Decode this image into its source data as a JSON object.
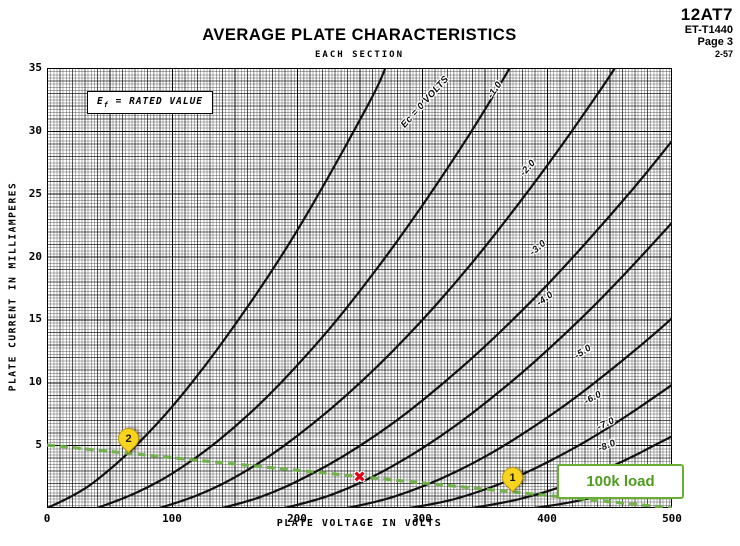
{
  "header": {
    "tube_type": "12AT7",
    "doc_number": "ET-T1440",
    "page": "Page 3",
    "date_code": "2-57"
  },
  "ef_note": {
    "prefix": "E",
    "sub": "f",
    "rest": " = RATED VALUE"
  },
  "chart_data": {
    "type": "line",
    "title": "AVERAGE PLATE CHARACTERISTICS",
    "subtitle": "EACH SECTION",
    "xlabel": "PLATE VOLTAGE IN VOLTS",
    "ylabel": "PLATE CURRENT IN MILLIAMPERES",
    "xlim": [
      0,
      500
    ],
    "ylim": [
      0,
      35
    ],
    "x_ticks": [
      0,
      100,
      200,
      300,
      400,
      500
    ],
    "y_ticks": [
      5,
      10,
      15,
      20,
      25,
      30,
      35
    ],
    "grid": "fine graph paper, on",
    "legend_position": "labels on curves",
    "series": [
      {
        "name": "Ec = 0 VOLTS",
        "grid_voltage": 0,
        "points": [
          [
            0,
            0
          ],
          [
            25,
            1.1
          ],
          [
            50,
            3.0
          ],
          [
            75,
            5.3
          ],
          [
            100,
            8.0
          ],
          [
            125,
            11.1
          ],
          [
            150,
            14.5
          ],
          [
            175,
            18.1
          ],
          [
            200,
            22.0
          ],
          [
            225,
            26.3
          ],
          [
            250,
            30.8
          ],
          [
            265,
            33.6
          ],
          [
            272,
            35.3
          ]
        ]
      },
      {
        "name": "-1.0",
        "grid_voltage": -1,
        "points": [
          [
            40,
            0
          ],
          [
            60,
            0.7
          ],
          [
            80,
            1.6
          ],
          [
            100,
            2.7
          ],
          [
            125,
            4.4
          ],
          [
            150,
            6.4
          ],
          [
            175,
            8.7
          ],
          [
            200,
            11.3
          ],
          [
            225,
            14.1
          ],
          [
            250,
            17.2
          ],
          [
            275,
            20.5
          ],
          [
            300,
            24.0
          ],
          [
            325,
            27.7
          ],
          [
            350,
            31.6
          ],
          [
            372,
            35.3
          ]
        ]
      },
      {
        "name": "-2.0",
        "grid_voltage": -2,
        "points": [
          [
            90,
            0
          ],
          [
            110,
            0.6
          ],
          [
            130,
            1.4
          ],
          [
            150,
            2.4
          ],
          [
            175,
            3.9
          ],
          [
            200,
            5.7
          ],
          [
            225,
            7.7
          ],
          [
            250,
            9.9
          ],
          [
            275,
            12.3
          ],
          [
            300,
            14.9
          ],
          [
            325,
            17.7
          ],
          [
            350,
            20.7
          ],
          [
            375,
            23.9
          ],
          [
            400,
            27.2
          ],
          [
            425,
            30.7
          ],
          [
            450,
            34.3
          ],
          [
            456,
            35.3
          ]
        ]
      },
      {
        "name": "-3.0",
        "grid_voltage": -3,
        "points": [
          [
            140,
            0
          ],
          [
            160,
            0.5
          ],
          [
            180,
            1.2
          ],
          [
            200,
            2.1
          ],
          [
            225,
            3.4
          ],
          [
            250,
            4.9
          ],
          [
            275,
            6.6
          ],
          [
            300,
            8.5
          ],
          [
            325,
            10.6
          ],
          [
            350,
            12.8
          ],
          [
            375,
            15.2
          ],
          [
            400,
            17.7
          ],
          [
            425,
            20.4
          ],
          [
            450,
            23.2
          ],
          [
            475,
            26.1
          ],
          [
            500,
            29.2
          ]
        ]
      },
      {
        "name": "-4.0",
        "grid_voltage": -4,
        "points": [
          [
            190,
            0
          ],
          [
            215,
            0.6
          ],
          [
            240,
            1.5
          ],
          [
            265,
            2.7
          ],
          [
            290,
            4.1
          ],
          [
            315,
            5.7
          ],
          [
            340,
            7.5
          ],
          [
            365,
            9.5
          ],
          [
            390,
            11.6
          ],
          [
            415,
            13.9
          ],
          [
            440,
            16.3
          ],
          [
            465,
            18.9
          ],
          [
            490,
            21.6
          ],
          [
            500,
            22.7
          ]
        ]
      },
      {
        "name": "-5.0",
        "grid_voltage": -5,
        "points": [
          [
            240,
            0
          ],
          [
            265,
            0.5
          ],
          [
            290,
            1.3
          ],
          [
            315,
            2.3
          ],
          [
            340,
            3.5
          ],
          [
            365,
            4.9
          ],
          [
            390,
            6.5
          ],
          [
            415,
            8.2
          ],
          [
            440,
            10.1
          ],
          [
            465,
            12.1
          ],
          [
            490,
            14.2
          ],
          [
            500,
            15.1
          ]
        ]
      },
      {
        "name": "-6.0",
        "grid_voltage": -6,
        "points": [
          [
            290,
            0
          ],
          [
            315,
            0.4
          ],
          [
            340,
            1.1
          ],
          [
            365,
            2.0
          ],
          [
            390,
            3.1
          ],
          [
            415,
            4.4
          ],
          [
            440,
            5.8
          ],
          [
            465,
            7.4
          ],
          [
            490,
            9.1
          ],
          [
            500,
            9.8
          ]
        ]
      },
      {
        "name": "-7.0",
        "grid_voltage": -7,
        "points": [
          [
            340,
            0
          ],
          [
            365,
            0.4
          ],
          [
            390,
            1.0
          ],
          [
            415,
            1.8
          ],
          [
            440,
            2.8
          ],
          [
            465,
            3.9
          ],
          [
            490,
            5.2
          ],
          [
            500,
            5.7
          ]
        ]
      },
      {
        "name": "-8.0",
        "grid_voltage": -8,
        "points": [
          [
            390,
            0
          ],
          [
            415,
            0.35
          ],
          [
            440,
            0.9
          ],
          [
            465,
            1.6
          ],
          [
            490,
            2.5
          ],
          [
            500,
            2.9
          ]
        ]
      }
    ],
    "annotations": {
      "load_line": {
        "label": "100k load",
        "points": [
          [
            0,
            5
          ],
          [
            500,
            0
          ]
        ],
        "color": "#6cb043",
        "style": "dashed"
      },
      "operating_point": {
        "symbol": "✖",
        "v": 250,
        "ma": 2.5,
        "color": "#e50019"
      },
      "tags": [
        {
          "label": "2",
          "v": 65,
          "ma": 4.35,
          "color": "#f8d41f"
        },
        {
          "label": "1",
          "v": 372,
          "ma": 1.28,
          "color": "#f8d41f"
        }
      ]
    }
  }
}
